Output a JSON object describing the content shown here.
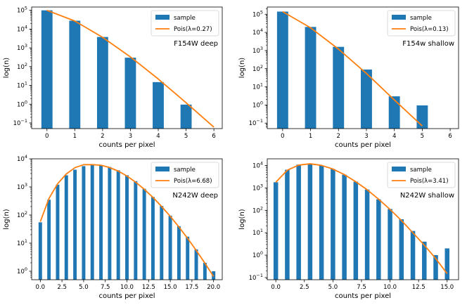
{
  "colors": {
    "bar": "#1f77b4",
    "line": "#ff7f0e"
  },
  "chart_data": [
    {
      "type": "bar",
      "scale": "log",
      "ylim": [
        0.05,
        150000
      ],
      "xlim": [
        -0.55,
        6.3
      ],
      "xticks": [
        0,
        1,
        2,
        3,
        4,
        5,
        6
      ],
      "xtick_labels": [
        "0",
        "1",
        "2",
        "3",
        "4",
        "5",
        "6"
      ],
      "ytick_exps": [
        -1,
        0,
        1,
        2,
        3,
        4,
        5
      ],
      "xlabel": "counts per pixel",
      "ylabel": "log(n)",
      "annotation": "F154W deep",
      "legend": [
        "sample",
        "Pois(λ=0.27)"
      ],
      "bar_width": 0.4,
      "bars": {
        "x": [
          0,
          1,
          2,
          3,
          4,
          5
        ],
        "values": [
          100000,
          28000,
          3800,
          300,
          15,
          0.95
        ]
      },
      "curve": {
        "x": [
          0,
          1,
          2,
          3,
          4,
          5,
          6
        ],
        "values": [
          100000,
          27000,
          3650,
          330,
          22,
          1.2,
          0.06
        ]
      }
    },
    {
      "type": "bar",
      "scale": "log",
      "ylim": [
        0.05,
        250000
      ],
      "xlim": [
        -0.55,
        6.3
      ],
      "xticks": [
        0,
        1,
        2,
        3,
        4,
        5,
        6
      ],
      "xtick_labels": [
        "0",
        "1",
        "2",
        "3",
        "4",
        "5",
        "6"
      ],
      "ytick_exps": [
        -1,
        0,
        1,
        2,
        3,
        4,
        5
      ],
      "xlabel": "counts per pixel",
      "ylabel": "log(n)",
      "annotation": "F154w shallow",
      "legend": [
        "sample",
        "Pois(λ=0.13)"
      ],
      "bar_width": 0.4,
      "bars": {
        "x": [
          0,
          1,
          2,
          3,
          4,
          5
        ],
        "values": [
          140000,
          20000,
          1600,
          90,
          3,
          0.95
        ]
      },
      "curve": {
        "x": [
          0,
          1,
          2,
          3,
          4,
          5
        ],
        "values": [
          140000,
          18000,
          1200,
          55,
          1.9,
          0.07
        ]
      }
    },
    {
      "type": "bar",
      "scale": "log",
      "ylim": [
        0.5,
        10000
      ],
      "xlim": [
        -1.0,
        21.0
      ],
      "xticks": [
        0,
        2.5,
        5,
        7.5,
        10,
        12.5,
        15,
        17.5,
        20
      ],
      "xtick_labels": [
        "0.0",
        "2.5",
        "5.0",
        "7.5",
        "10.0",
        "12.5",
        "15.0",
        "17.5",
        "20.0"
      ],
      "ytick_exps": [
        0,
        1,
        2,
        3,
        4
      ],
      "xlabel": "counts per pixel",
      "ylabel": "log(n)",
      "annotation": "N242W deep",
      "legend": [
        "sample",
        "Pois(λ=6.68)"
      ],
      "bar_width": 0.4,
      "bars": {
        "x": [
          0,
          1,
          2,
          3,
          4,
          5,
          6,
          7,
          8,
          9,
          10,
          11,
          12,
          13,
          14,
          15,
          16,
          17,
          18,
          19,
          20
        ],
        "values": [
          55,
          350,
          1200,
          2600,
          4100,
          5500,
          6000,
          5900,
          5100,
          3900,
          2600,
          1600,
          860,
          440,
          210,
          95,
          40,
          17,
          6,
          2,
          1
        ]
      },
      "curve": {
        "x": [
          0,
          1,
          2,
          3,
          4,
          5,
          6,
          7,
          8,
          9,
          10,
          11,
          12,
          13,
          14,
          15,
          16,
          17,
          18,
          19,
          20
        ],
        "values": [
          58,
          390,
          1300,
          2900,
          4850,
          6200,
          6200,
          5900,
          4900,
          3650,
          2440,
          1480,
          825,
          424,
          202,
          90,
          37.7,
          14.8,
          5.5,
          1.93,
          0.65
        ]
      }
    },
    {
      "type": "bar",
      "scale": "log",
      "ylim": [
        0.08,
        20000
      ],
      "xlim": [
        -0.75,
        16.0
      ],
      "xticks": [
        0,
        2.5,
        5,
        7.5,
        10,
        12.5,
        15
      ],
      "xtick_labels": [
        "0.0",
        "2.5",
        "5.0",
        "7.5",
        "10.0",
        "12.5",
        "15.0"
      ],
      "ytick_exps": [
        -1,
        0,
        1,
        2,
        3,
        4
      ],
      "xlabel": "counts per pixel",
      "ylabel": "log(n)",
      "annotation": "N242W shallow",
      "legend": [
        "sample",
        "Pois(λ=3.41)"
      ],
      "bar_width": 0.4,
      "bars": {
        "x": [
          0,
          1,
          2,
          3,
          4,
          5,
          6,
          7,
          8,
          9,
          10,
          11,
          12,
          13,
          14,
          15
        ],
        "values": [
          1800,
          6500,
          11000,
          12000,
          10000,
          7000,
          3900,
          1900,
          850,
          310,
          115,
          40,
          12,
          4,
          1,
          2
        ]
      },
      "curve": {
        "x": [
          0,
          1,
          2,
          3,
          4,
          5,
          6,
          7,
          8,
          9,
          10,
          11,
          12,
          13,
          14,
          15
        ],
        "values": [
          1800,
          6200,
          10500,
          12000,
          10200,
          7000,
          3950,
          1900,
          830,
          315,
          110,
          35,
          10,
          2.8,
          0.7,
          0.15
        ]
      }
    }
  ]
}
